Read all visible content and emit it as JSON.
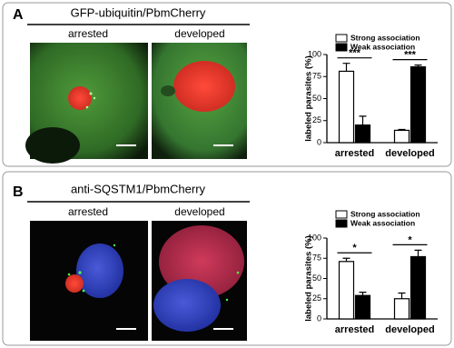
{
  "panels": [
    {
      "label": "A",
      "title": "GFP-ubiquitin/PbmCherry",
      "images": [
        "arrested",
        "developed"
      ]
    },
    {
      "label": "B",
      "title": "anti-SQSTM1/PbmCherry",
      "images": [
        "arrested",
        "developed"
      ]
    }
  ],
  "chart_data": [
    {
      "type": "bar",
      "categories": [
        "arrested",
        "developed"
      ],
      "y_label": "labeled parasites (%)",
      "ylim": [
        0,
        100
      ],
      "yticks": [
        0,
        25,
        50,
        75,
        100
      ],
      "series": [
        {
          "name": "Strong association",
          "color": "#ffffff",
          "values": [
            81,
            14
          ],
          "errors": [
            9,
            1
          ]
        },
        {
          "name": "Weak association",
          "color": "#000000",
          "values": [
            20,
            86
          ],
          "errors": [
            10,
            2
          ]
        }
      ],
      "significance": [
        "***",
        "***"
      ]
    },
    {
      "type": "bar",
      "categories": [
        "arrested",
        "developed"
      ],
      "y_label": "labeled parasites (%)",
      "ylim": [
        0,
        100
      ],
      "yticks": [
        0,
        25,
        50,
        75,
        100
      ],
      "series": [
        {
          "name": "Strong association",
          "color": "#ffffff",
          "values": [
            71,
            25
          ],
          "errors": [
            4,
            7
          ]
        },
        {
          "name": "Weak association",
          "color": "#000000",
          "values": [
            29,
            77
          ],
          "errors": [
            4,
            8
          ]
        }
      ],
      "significance": [
        "*",
        "*"
      ]
    }
  ]
}
